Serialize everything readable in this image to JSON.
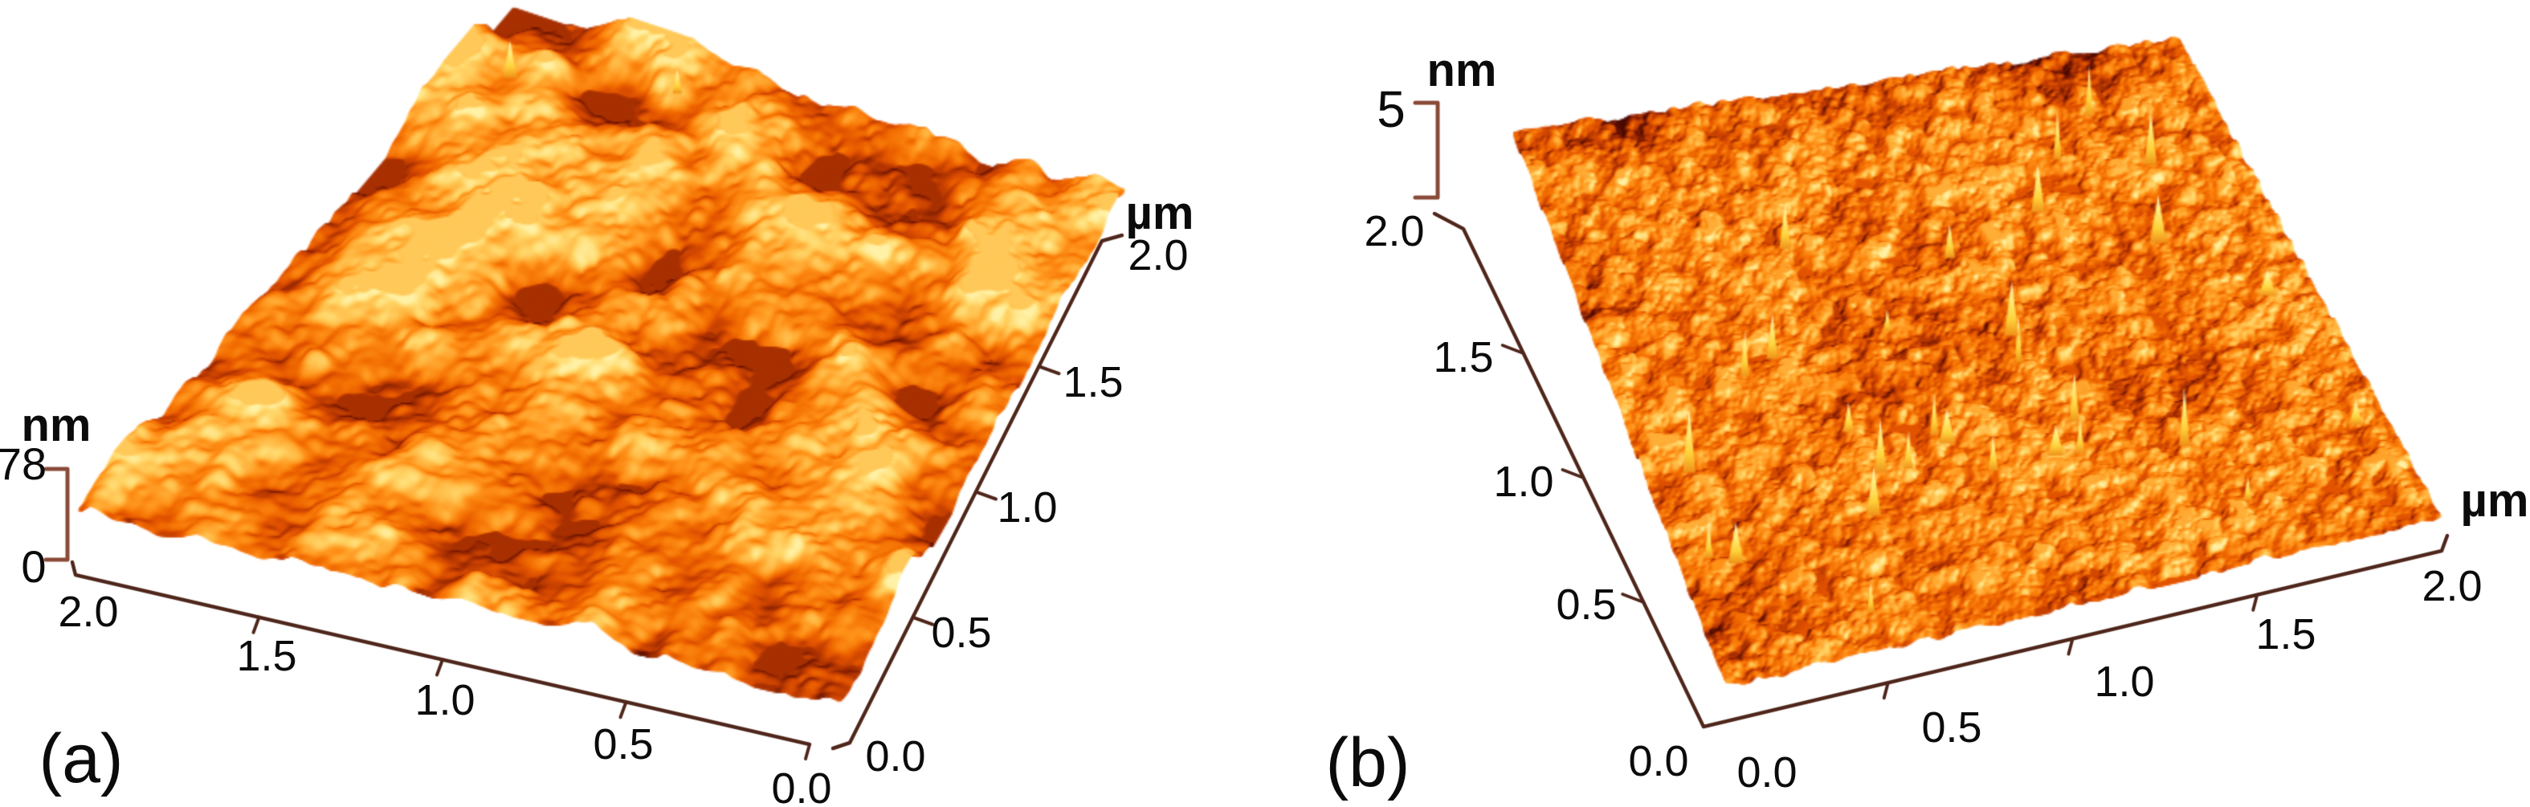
{
  "figure": {
    "kind": "AFM 3D surface topography figure, two panels",
    "background": "#ffffff",
    "axis_color": "#4f261b",
    "bracket_color": "#8a4a38",
    "text_color": "#0b0b0b",
    "panels": [
      {
        "label": "(a)",
        "z_scale": {
          "unit": "nm",
          "max": "78",
          "min": "0"
        },
        "x_axis": {
          "ticks": [
            "2.0",
            "1.5",
            "1.0",
            "0.5",
            "0.0"
          ]
        },
        "y_axis": {
          "unit": "µm",
          "ticks": [
            "2.0",
            "1.5",
            "1.0",
            "0.5",
            "0.0"
          ]
        }
      },
      {
        "label": "(b)",
        "z_scale": {
          "unit": "nm",
          "max": "5",
          "min": ""
        },
        "y_axis": {
          "ticks": [
            "2.0",
            "1.5",
            "1.0",
            "0.5",
            "0.0"
          ]
        },
        "x_axis": {
          "unit": "µm",
          "ticks": [
            "0.0",
            "0.5",
            "1.0",
            "1.5",
            "2.0"
          ]
        }
      }
    ]
  },
  "chart_data": [
    {
      "type": "heatmap",
      "panel": "a",
      "title": "(a)",
      "xlabel": "µm",
      "ylabel": "µm",
      "zlabel": "nm",
      "x_range_um": [
        0.0,
        2.0
      ],
      "y_range_um": [
        0.0,
        2.0
      ],
      "z_range_nm": [
        0,
        78
      ],
      "x_ticks": [
        2.0,
        1.5,
        1.0,
        0.5,
        0.0
      ],
      "y_ticks": [
        0.0,
        0.5,
        1.0,
        1.5,
        2.0
      ],
      "surface_character": "densely packed rounded grains ~0.15-0.3 um wide, peak-to-valley about 78 nm, orange-gold AFM colormap with yellow peaks and dark red-brown valleys",
      "colormap": [
        "#4a0c00",
        "#7d1e00",
        "#b83a00",
        "#e25500",
        "#f57407",
        "#ff931c",
        "#ffb844",
        "#ffd96e",
        "#fff2a8"
      ]
    },
    {
      "type": "heatmap",
      "panel": "b",
      "title": "(b)",
      "xlabel": "µm",
      "ylabel": "µm",
      "zlabel": "nm",
      "x_range_um": [
        0.0,
        2.0
      ],
      "y_range_um": [
        0.0,
        2.0
      ],
      "z_scale_bar_nm": 5,
      "x_ticks": [
        0.0,
        0.5,
        1.0,
        1.5,
        2.0
      ],
      "y_ticks": [
        2.0,
        1.5,
        1.0,
        0.5,
        0.0
      ],
      "surface_character": "very flat fine-grained surface (5 nm scale bar) with sparse sharp bright yellow spikes and dark red mottling",
      "colormap": [
        "#4a0c00",
        "#7d1e00",
        "#b83a00",
        "#e25500",
        "#f57407",
        "#ff931c",
        "#ffb844",
        "#ffd96e",
        "#fff2a8"
      ]
    }
  ]
}
